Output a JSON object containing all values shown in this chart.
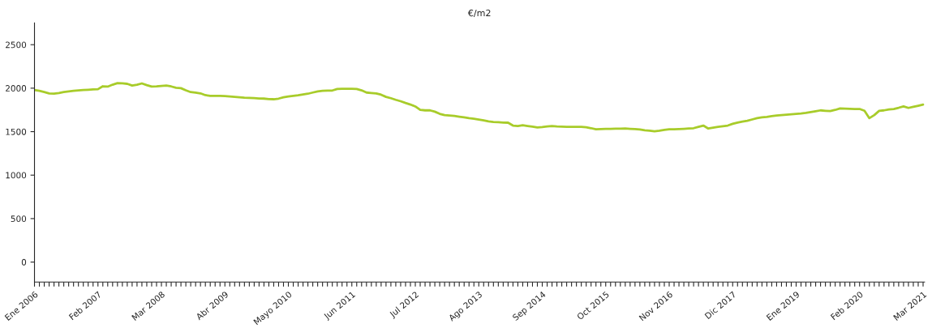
{
  "chart_data": {
    "type": "line",
    "title": "€/m2",
    "categories": [
      "Ene 2006",
      null,
      null,
      null,
      null,
      null,
      null,
      null,
      null,
      null,
      null,
      null,
      null,
      "Feb 2007",
      null,
      null,
      null,
      null,
      null,
      null,
      null,
      null,
      null,
      null,
      null,
      null,
      "Mar 2008",
      null,
      null,
      null,
      null,
      null,
      null,
      null,
      null,
      null,
      null,
      null,
      null,
      "Abr 2009",
      null,
      null,
      null,
      null,
      null,
      null,
      null,
      null,
      null,
      null,
      null,
      null,
      "Mayo 2010",
      null,
      null,
      null,
      null,
      null,
      null,
      null,
      null,
      null,
      null,
      null,
      null,
      "Jun 2011",
      null,
      null,
      null,
      null,
      null,
      null,
      null,
      null,
      null,
      null,
      null,
      null,
      "Jul 2012",
      null,
      null,
      null,
      null,
      null,
      null,
      null,
      null,
      null,
      null,
      null,
      null,
      "Ago 2013",
      null,
      null,
      null,
      null,
      null,
      null,
      null,
      null,
      null,
      null,
      null,
      null,
      "Sep 2014",
      null,
      null,
      null,
      null,
      null,
      null,
      null,
      null,
      null,
      null,
      null,
      null,
      "Oct 2015",
      null,
      null,
      null,
      null,
      null,
      null,
      null,
      null,
      null,
      null,
      null,
      null,
      "Nov 2016",
      null,
      null,
      null,
      null,
      null,
      null,
      null,
      null,
      null,
      null,
      null,
      null,
      "Dic 2017",
      null,
      null,
      null,
      null,
      null,
      null,
      null,
      null,
      null,
      null,
      null,
      null,
      "Ene 2019",
      null,
      null,
      null,
      null,
      null,
      null,
      null,
      null,
      null,
      null,
      null,
      null,
      "Feb 2020",
      null,
      null,
      null,
      null,
      null,
      null,
      null,
      null,
      null,
      null,
      null,
      null,
      "Mar 2021"
    ],
    "series": [
      {
        "color": "#a8cc2a",
        "values": [
          1980,
          1970,
          1955,
          1940,
          1938,
          1945,
          1955,
          1962,
          1970,
          1975,
          1978,
          1982,
          1985,
          1988,
          2022,
          2018,
          2040,
          2058,
          2055,
          2050,
          2030,
          2040,
          2055,
          2035,
          2018,
          2020,
          2025,
          2030,
          2020,
          2005,
          2000,
          1975,
          1955,
          1948,
          1940,
          1920,
          1912,
          1912,
          1912,
          1910,
          1905,
          1900,
          1895,
          1890,
          1888,
          1885,
          1882,
          1880,
          1875,
          1873,
          1880,
          1895,
          1905,
          1912,
          1918,
          1928,
          1936,
          1950,
          1962,
          1970,
          1973,
          1973,
          1990,
          1994,
          1994,
          1992,
          1990,
          1975,
          1950,
          1945,
          1940,
          1925,
          1900,
          1885,
          1866,
          1850,
          1830,
          1812,
          1790,
          1750,
          1745,
          1745,
          1730,
          1705,
          1690,
          1685,
          1680,
          1672,
          1665,
          1655,
          1648,
          1640,
          1630,
          1618,
          1612,
          1608,
          1605,
          1603,
          1570,
          1565,
          1573,
          1565,
          1558,
          1548,
          1552,
          1560,
          1564,
          1560,
          1558,
          1556,
          1556,
          1555,
          1555,
          1550,
          1540,
          1527,
          1530,
          1532,
          1533,
          1535,
          1535,
          1536,
          1533,
          1530,
          1525,
          1515,
          1510,
          1503,
          1510,
          1520,
          1527,
          1528,
          1530,
          1533,
          1536,
          1540,
          1555,
          1570,
          1536,
          1545,
          1555,
          1562,
          1570,
          1590,
          1605,
          1615,
          1625,
          1640,
          1655,
          1664,
          1670,
          1678,
          1685,
          1690,
          1695,
          1700,
          1705,
          1709,
          1715,
          1725,
          1735,
          1745,
          1740,
          1736,
          1750,
          1767,
          1765,
          1762,
          1760,
          1761,
          1740,
          1655,
          1690,
          1739,
          1745,
          1755,
          1761,
          1775,
          1791,
          1773,
          1785,
          1798,
          1812
        ]
      }
    ],
    "ylim": [
      -230,
      2750
    ],
    "yticks": [
      0,
      500,
      1000,
      1500,
      2000,
      2500
    ],
    "grid": false,
    "legend": false
  }
}
